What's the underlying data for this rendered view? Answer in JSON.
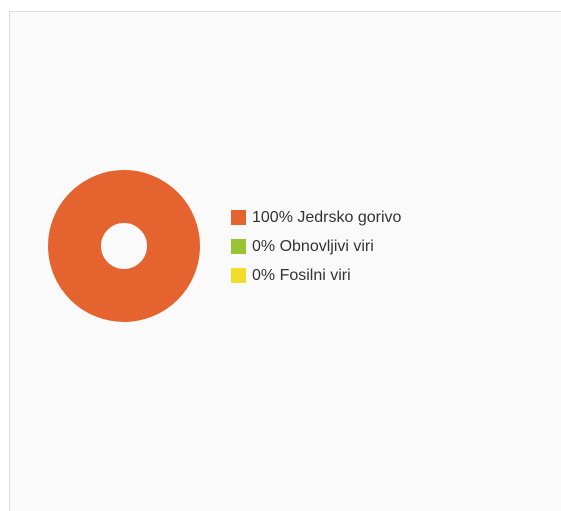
{
  "chart_data": {
    "type": "pie",
    "donut": true,
    "categories": [
      "Jedrsko gorivo",
      "Obnovljivi viri",
      "Fosilni viri"
    ],
    "values": [
      100,
      0,
      0
    ],
    "colors": [
      "#e5632e",
      "#97c335",
      "#f2dc2b"
    ],
    "legend": {
      "placement": "right",
      "labels": [
        "100% Jedrsko gorivo",
        "0% Obnovljivi viri",
        "0% Fosilni viri"
      ]
    }
  }
}
